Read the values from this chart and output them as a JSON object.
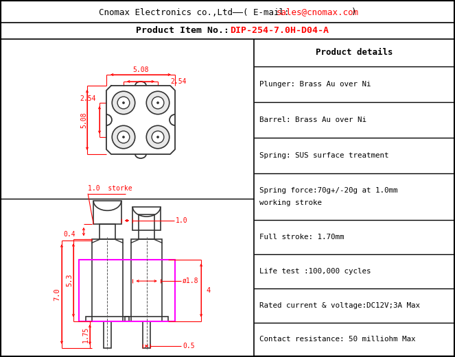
{
  "border_color": "#000000",
  "dim_color": "#ff0000",
  "draw_color": "#333333",
  "magenta_color": "#ff00ff",
  "product_details_title": "Product details",
  "product_details": [
    "Plunger: Brass Au over Ni",
    "Barrel: Brass Au over Ni",
    "Spring: SUS surface treatment",
    "Spring force:70g+/-20g at 1.0mm\nworking stroke",
    "Full stroke: 1.70mm",
    "Life test :100,000 cycles",
    "Rated current & voltage:DC12V;3A Max",
    "Contact resistance: 50 milliohm Max"
  ],
  "fig_width": 6.63,
  "fig_height": 5.21,
  "dpi": 100
}
